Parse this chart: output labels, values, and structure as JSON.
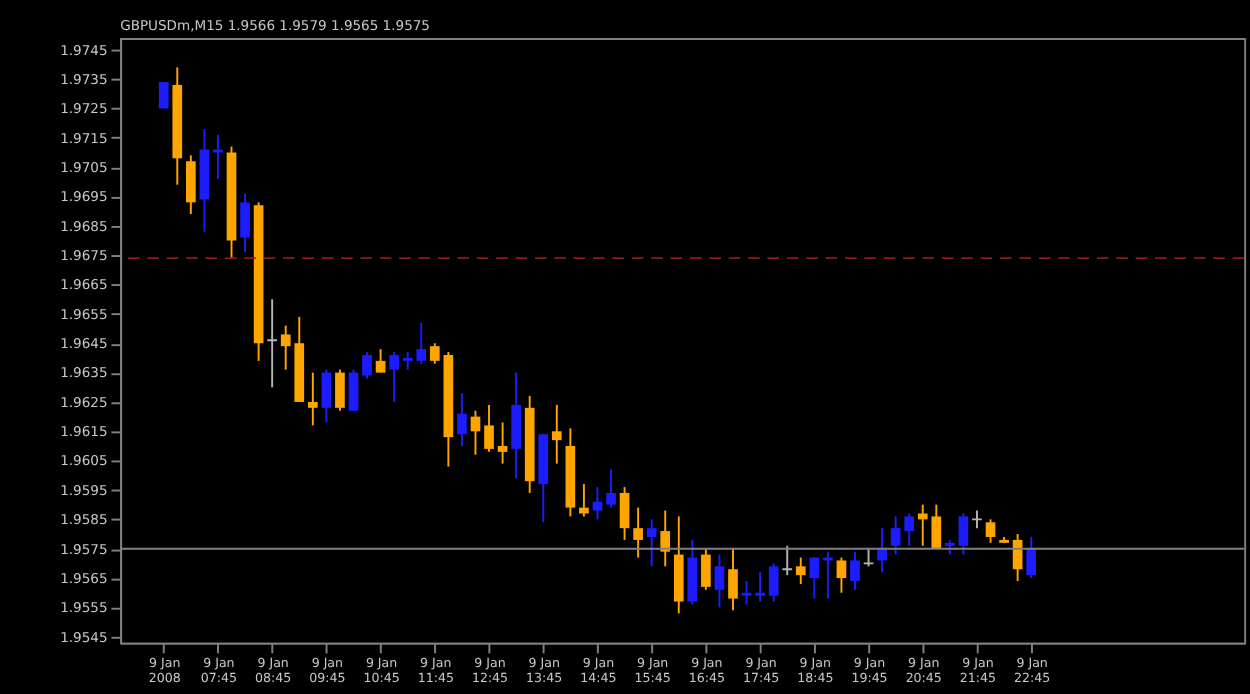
{
  "chart_data": {
    "type": "candlestick",
    "title": "GBPUSDm,M15  1.9566 1.9579 1.9565 1.9575",
    "categories": [
      "9 Jan 2008",
      null,
      null,
      null,
      "9 Jan 07:45",
      null,
      null,
      null,
      "9 Jan 08:45",
      null,
      null,
      null,
      "9 Jan 09:45",
      null,
      null,
      null,
      "9 Jan 10:45",
      null,
      null,
      null,
      "9 Jan 11:45",
      null,
      null,
      null,
      "9 Jan 12:45",
      null,
      null,
      null,
      "9 Jan 13:45",
      null,
      null,
      null,
      "9 Jan 14:45",
      null,
      null,
      null,
      "9 Jan 15:45",
      null,
      null,
      null,
      "9 Jan 16:45",
      null,
      null,
      null,
      "9 Jan 17:45",
      null,
      null,
      null,
      "9 Jan 18:45",
      null,
      null,
      null,
      "9 Jan 19:45",
      null,
      null,
      null,
      "9 Jan 20:45",
      null,
      null,
      null,
      "9 Jan 21:45",
      null,
      null,
      null,
      "9 Jan 22:45"
    ],
    "ohlc": [
      [
        1.9725,
        1.9734,
        1.9725,
        1.9734
      ],
      [
        1.9733,
        1.9739,
        1.9699,
        1.9708
      ],
      [
        1.9707,
        1.9709,
        1.9689,
        1.9693
      ],
      [
        1.9694,
        1.9718,
        1.9683,
        1.9711
      ],
      [
        1.971,
        1.9716,
        1.9701,
        1.9711
      ],
      [
        1.971,
        1.9712,
        1.9674,
        1.968
      ],
      [
        1.9681,
        1.9696,
        1.9676,
        1.9693
      ],
      [
        1.9692,
        1.9693,
        1.9639,
        1.9645
      ],
      [
        1.9646,
        1.966,
        1.963,
        1.9646
      ],
      [
        1.9648,
        1.9651,
        1.9636,
        1.9644
      ],
      [
        1.9645,
        1.9654,
        1.9625,
        1.9625
      ],
      [
        1.9625,
        1.9635,
        1.9617,
        1.9623
      ],
      [
        1.9623,
        1.9636,
        1.9618,
        1.9635
      ],
      [
        1.9635,
        1.9636,
        1.9622,
        1.9623
      ],
      [
        1.9622,
        1.9636,
        1.9622,
        1.9635
      ],
      [
        1.9634,
        1.9642,
        1.9633,
        1.9641
      ],
      [
        1.9639,
        1.9643,
        1.9635,
        1.9635
      ],
      [
        1.9636,
        1.9642,
        1.9625,
        1.9641
      ],
      [
        1.9639,
        1.9642,
        1.9636,
        1.964
      ],
      [
        1.9639,
        1.9652,
        1.9638,
        1.9643
      ],
      [
        1.9644,
        1.9645,
        1.9638,
        1.9639
      ],
      [
        1.9641,
        1.9642,
        1.9603,
        1.9613
      ],
      [
        1.9614,
        1.9628,
        1.961,
        1.9621
      ],
      [
        1.962,
        1.9622,
        1.9607,
        1.9615
      ],
      [
        1.9617,
        1.9624,
        1.9608,
        1.9609
      ],
      [
        1.961,
        1.9618,
        1.9604,
        1.9608
      ],
      [
        1.9609,
        1.9635,
        1.9599,
        1.9624
      ],
      [
        1.9623,
        1.9627,
        1.9594,
        1.9598
      ],
      [
        1.9597,
        1.9614,
        1.9584,
        1.9614
      ],
      [
        1.9615,
        1.9624,
        1.9604,
        1.9612
      ],
      [
        1.961,
        1.9616,
        1.9586,
        1.9589
      ],
      [
        1.9589,
        1.9597,
        1.9586,
        1.9587
      ],
      [
        1.9588,
        1.9596,
        1.9585,
        1.9591
      ],
      [
        1.959,
        1.9602,
        1.9589,
        1.9594
      ],
      [
        1.9594,
        1.9596,
        1.9578,
        1.9582
      ],
      [
        1.9582,
        1.9589,
        1.9572,
        1.9578
      ],
      [
        1.9579,
        1.9585,
        1.9569,
        1.9582
      ],
      [
        1.9581,
        1.9588,
        1.9569,
        1.9574
      ],
      [
        1.9573,
        1.9586,
        1.9553,
        1.9557
      ],
      [
        1.9557,
        1.9578,
        1.9556,
        1.9572
      ],
      [
        1.9573,
        1.9575,
        1.9561,
        1.9562
      ],
      [
        1.9561,
        1.9573,
        1.9555,
        1.9569
      ],
      [
        1.9568,
        1.9575,
        1.9554,
        1.9558
      ],
      [
        1.9559,
        1.9564,
        1.9556,
        1.956
      ],
      [
        1.9559,
        1.9567,
        1.9557,
        1.956
      ],
      [
        1.9559,
        1.957,
        1.9557,
        1.9569
      ],
      [
        1.9568,
        1.9576,
        1.9566,
        1.9568
      ],
      [
        1.9569,
        1.9572,
        1.9563,
        1.9566
      ],
      [
        1.9565,
        1.9572,
        1.9558,
        1.9572
      ],
      [
        1.9571,
        1.9574,
        1.9558,
        1.9572
      ],
      [
        1.9571,
        1.9572,
        1.956,
        1.9565
      ],
      [
        1.9564,
        1.9574,
        1.9561,
        1.9571
      ],
      [
        1.957,
        1.9575,
        1.9569,
        1.957
      ],
      [
        1.9571,
        1.9582,
        1.9567,
        1.9575
      ],
      [
        1.9576,
        1.9586,
        1.9573,
        1.9582
      ],
      [
        1.9581,
        1.9587,
        1.9576,
        1.9586
      ],
      [
        1.9587,
        1.959,
        1.9576,
        1.9585
      ],
      [
        1.9586,
        1.959,
        1.9575,
        1.9575
      ],
      [
        1.9576,
        1.9578,
        1.9573,
        1.9577
      ],
      [
        1.9576,
        1.9587,
        1.9573,
        1.9586
      ],
      [
        1.9585,
        1.9588,
        1.9582,
        1.9585
      ],
      [
        1.9584,
        1.9585,
        1.9577,
        1.9579
      ],
      [
        1.9578,
        1.9579,
        1.9577,
        1.9577
      ],
      [
        1.9578,
        1.958,
        1.9564,
        1.9568
      ],
      [
        1.9566,
        1.9579,
        1.9565,
        1.9575
      ]
    ],
    "colors": [
      "#1c1cff",
      "#ffa500",
      "#ffa500",
      "#1c1cff",
      "#1c1cff",
      "#ffa500",
      "#1c1cff",
      "#ffa500",
      "#b4b4b4",
      "#ffa500",
      "#ffa500",
      "#ffa500",
      "#1c1cff",
      "#ffa500",
      "#1c1cff",
      "#1c1cff",
      "#ffa500",
      "#1c1cff",
      "#1c1cff",
      "#1c1cff",
      "#ffa500",
      "#ffa500",
      "#1c1cff",
      "#ffa500",
      "#ffa500",
      "#ffa500",
      "#1c1cff",
      "#ffa500",
      "#1c1cff",
      "#ffa500",
      "#ffa500",
      "#ffa500",
      "#1c1cff",
      "#1c1cff",
      "#ffa500",
      "#ffa500",
      "#1c1cff",
      "#ffa500",
      "#ffa500",
      "#1c1cff",
      "#ffa500",
      "#1c1cff",
      "#ffa500",
      "#1c1cff",
      "#1c1cff",
      "#1c1cff",
      "#b4b4b4",
      "#ffa500",
      "#1c1cff",
      "#1c1cff",
      "#ffa500",
      "#1c1cff",
      "#b4b4b4",
      "#1c1cff",
      "#1c1cff",
      "#1c1cff",
      "#ffa500",
      "#ffa500",
      "#1c1cff",
      "#1c1cff",
      "#b4b4b4",
      "#ffa500",
      "#ffa500",
      "#ffa500",
      "#1c1cff"
    ],
    "ylim": [
      1.9543,
      1.9749
    ],
    "yticks": [
      1.9545,
      1.9555,
      1.9565,
      1.9575,
      1.9585,
      1.9595,
      1.9605,
      1.9615,
      1.9625,
      1.9635,
      1.9645,
      1.9655,
      1.9665,
      1.9675,
      1.9685,
      1.9695,
      1.9705,
      1.9715,
      1.9725,
      1.9735,
      1.9745
    ],
    "ref_lines": [
      {
        "axis": "y",
        "value": 1.9575,
        "color": "#808080",
        "line_style": "solid"
      },
      {
        "axis": "y",
        "value": 1.9674,
        "color": "#8b1a1a",
        "line_style": "dashed"
      }
    ],
    "grid": false
  }
}
